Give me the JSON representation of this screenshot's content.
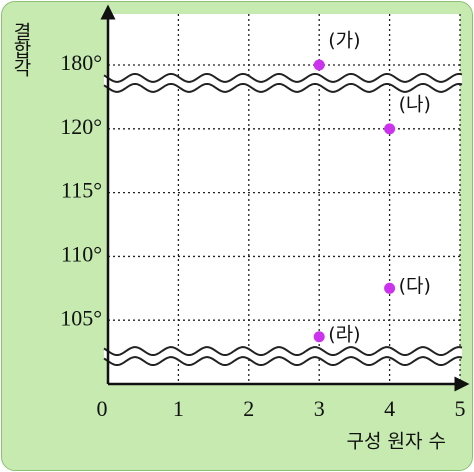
{
  "chart_data": {
    "type": "scatter",
    "x_label": "구성 원자 수",
    "y_label": "결합각",
    "x": [
      3,
      4,
      4,
      3
    ],
    "values": [
      180,
      120,
      107.5,
      103.7
    ],
    "point_labels": [
      "(가)",
      "(나)",
      "(다)",
      "(라)"
    ],
    "color": "#cc33ee",
    "xlim": [
      0,
      5
    ],
    "xticks": [
      0,
      1,
      2,
      3,
      4,
      5
    ],
    "ylim": [
      100,
      184
    ],
    "yticks": [
      {
        "value": 105,
        "label": "105°"
      },
      {
        "value": 110,
        "label": "110°"
      },
      {
        "value": 115,
        "label": "115°"
      },
      {
        "value": 120,
        "label": "120°"
      },
      {
        "value": 180,
        "label": "180°"
      }
    ],
    "grid": true,
    "axis_break": true
  }
}
